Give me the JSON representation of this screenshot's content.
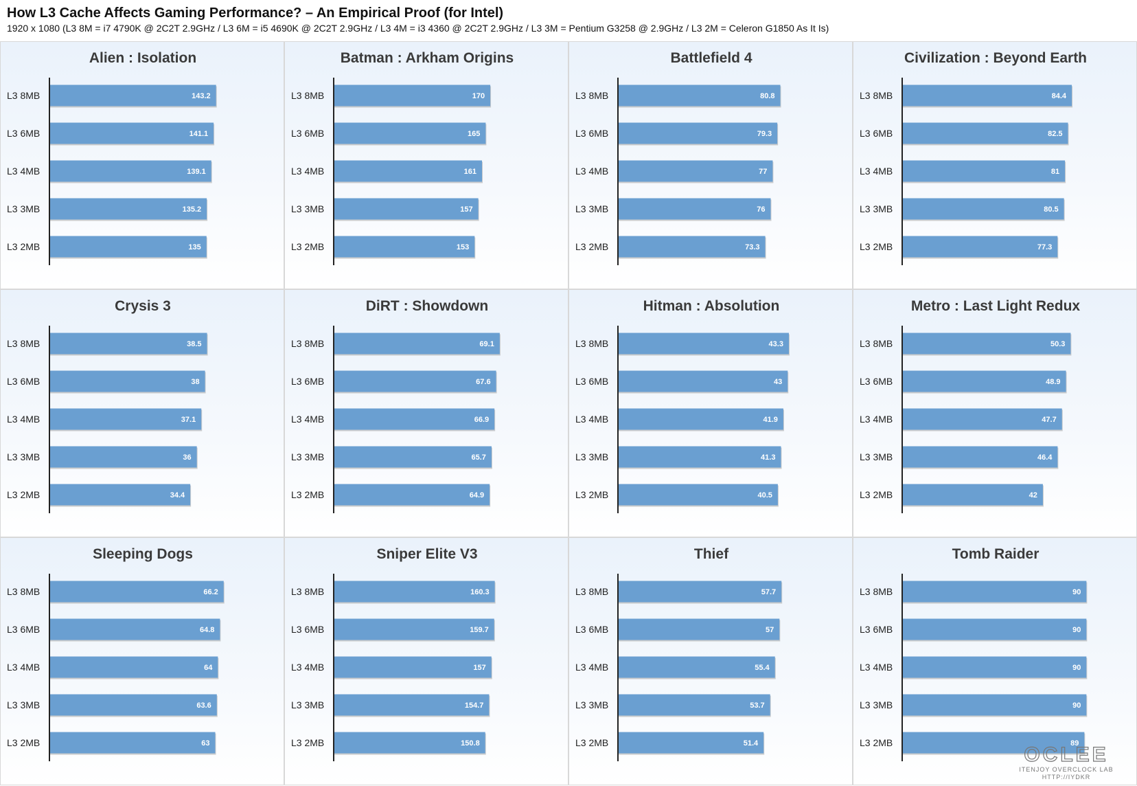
{
  "title": "How L3 Cache Affects Gaming Performance? – An Empirical Proof (for Intel)",
  "subtitle": "1920 x 1080 (L3 8M = i7 4790K @ 2C2T 2.9GHz / L3 6M = i5 4690K @ 2C2T 2.9GHz / L3 4M = i3 4360 @ 2C2T 2.9GHz / L3 3M = Pentium G3258 @ 2.9GHz / L3 2M = Celeron G1850 As It Is)",
  "watermark": {
    "logo_text": "OCLEE",
    "line1": "ITENJOY OVERCLOCK LAB",
    "line2": "HTTP://IYDKR"
  },
  "colors": {
    "bar": "#6a9fd1",
    "bar_shadow": "#b8b8b8",
    "axis": "#222222"
  },
  "chart_data": [
    {
      "type": "bar",
      "orientation": "horizontal",
      "title": "Alien : Isolation",
      "categories": [
        "L3 8MB",
        "L3 6MB",
        "L3 4MB",
        "L3 3MB",
        "L3 2MB"
      ],
      "values": [
        143.2,
        141.1,
        139.1,
        135.2,
        135
      ],
      "xlim": [
        0,
        190
      ]
    },
    {
      "type": "bar",
      "orientation": "horizontal",
      "title": "Batman : Arkham Origins",
      "categories": [
        "L3 8MB",
        "L3 6MB",
        "L3 4MB",
        "L3 3MB",
        "L3 2MB"
      ],
      "values": [
        170,
        165,
        161,
        157,
        153
      ],
      "xlim": [
        0,
        240
      ]
    },
    {
      "type": "bar",
      "orientation": "horizontal",
      "title": "Battlefield 4",
      "categories": [
        "L3 8MB",
        "L3 6MB",
        "L3 4MB",
        "L3 3MB",
        "L3 2MB"
      ],
      "values": [
        80.8,
        79.3,
        77,
        76,
        73.3
      ],
      "xlim": [
        0,
        110
      ]
    },
    {
      "type": "bar",
      "orientation": "horizontal",
      "title": "Civilization : Beyond Earth",
      "categories": [
        "L3 8MB",
        "L3 6MB",
        "L3 4MB",
        "L3 3MB",
        "L3 2MB"
      ],
      "values": [
        84.4,
        82.5,
        81,
        80.5,
        77.3
      ],
      "xlim": [
        0,
        110
      ]
    },
    {
      "type": "bar",
      "orientation": "horizontal",
      "title": "Crysis 3",
      "categories": [
        "L3 8MB",
        "L3 6MB",
        "L3 4MB",
        "L3 3MB",
        "L3 2MB"
      ],
      "values": [
        38.5,
        38,
        37.1,
        36,
        34.4
      ],
      "xlim": [
        0,
        54
      ]
    },
    {
      "type": "bar",
      "orientation": "horizontal",
      "title": "DiRT : Showdown",
      "categories": [
        "L3 8MB",
        "L3 6MB",
        "L3 4MB",
        "L3 3MB",
        "L3 2MB"
      ],
      "values": [
        69.1,
        67.6,
        66.9,
        65.7,
        64.9
      ],
      "xlim": [
        0,
        92
      ]
    },
    {
      "type": "bar",
      "orientation": "horizontal",
      "title": "Hitman : Absolution",
      "categories": [
        "L3 8MB",
        "L3 6MB",
        "L3 4MB",
        "L3 3MB",
        "L3 2MB"
      ],
      "values": [
        43.3,
        43,
        41.9,
        41.3,
        40.5
      ],
      "xlim": [
        0,
        56
      ]
    },
    {
      "type": "bar",
      "orientation": "horizontal",
      "title": "Metro : Last Light Redux",
      "categories": [
        "L3 8MB",
        "L3 6MB",
        "L3 4MB",
        "L3 3MB",
        "L3 2MB"
      ],
      "values": [
        50.3,
        48.9,
        47.7,
        46.4,
        42
      ],
      "xlim": [
        0,
        66
      ]
    },
    {
      "type": "bar",
      "orientation": "horizontal",
      "title": "Sleeping Dogs",
      "categories": [
        "L3 8MB",
        "L3 6MB",
        "L3 4MB",
        "L3 3MB",
        "L3 2MB"
      ],
      "values": [
        66.2,
        64.8,
        64,
        63.6,
        63
      ],
      "xlim": [
        0,
        84
      ]
    },
    {
      "type": "bar",
      "orientation": "horizontal",
      "title": "Sniper Elite V3",
      "categories": [
        "L3 8MB",
        "L3 6MB",
        "L3 4MB",
        "L3 3MB",
        "L3 2MB"
      ],
      "values": [
        160.3,
        159.7,
        157,
        154.7,
        150.8
      ],
      "xlim": [
        0,
        220
      ]
    },
    {
      "type": "bar",
      "orientation": "horizontal",
      "title": "Thief",
      "categories": [
        "L3 8MB",
        "L3 6MB",
        "L3 4MB",
        "L3 3MB",
        "L3 2MB"
      ],
      "values": [
        57.7,
        57,
        55.4,
        53.7,
        51.4
      ],
      "xlim": [
        0,
        78
      ]
    },
    {
      "type": "bar",
      "orientation": "horizontal",
      "title": "Tomb Raider",
      "categories": [
        "L3 8MB",
        "L3 6MB",
        "L3 4MB",
        "L3 3MB",
        "L3 2MB"
      ],
      "values": [
        90,
        90,
        90,
        90,
        89
      ],
      "xlim": [
        0,
        108
      ]
    }
  ]
}
